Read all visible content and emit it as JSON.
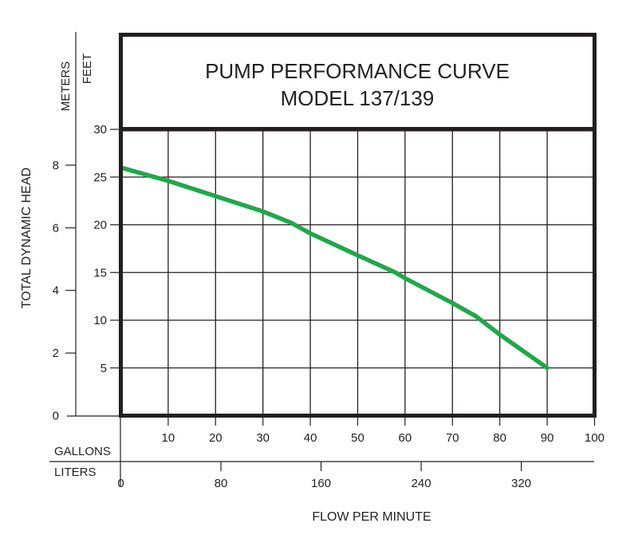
{
  "chart_data": {
    "type": "line",
    "title": "PUMP PERFORMANCE CURVE",
    "subtitle": "MODEL 137/139",
    "ylabel": "TOTAL DYNAMIC HEAD",
    "xlabel": "FLOW PER MINUTE",
    "y_units": {
      "primary": "FEET",
      "secondary": "METERS"
    },
    "x_units": {
      "primary": "GALLONS",
      "secondary": "LITERS"
    },
    "xlim": [
      0,
      100
    ],
    "ylim": [
      0,
      30
    ],
    "grid": true,
    "x_ticks": [
      "10",
      "20",
      "30",
      "40",
      "50",
      "60",
      "70",
      "80",
      "90",
      "100"
    ],
    "y_ticks_feet": [
      "5",
      "10",
      "15",
      "20",
      "25",
      "30"
    ],
    "y_ticks_meters": [
      "0",
      "2",
      "4",
      "6",
      "8"
    ],
    "x_ticks_liters": [
      "0",
      "80",
      "160",
      "240",
      "320"
    ],
    "line_color": "#1fa84a",
    "series": [
      {
        "x": [
          0,
          10,
          20,
          30,
          36,
          40,
          50,
          58,
          60,
          70,
          75,
          80,
          90
        ],
        "y": [
          26,
          24.6,
          23,
          21.4,
          20.2,
          19.1,
          16.8,
          15,
          14.4,
          11.8,
          10.4,
          8.5,
          5
        ]
      }
    ]
  }
}
